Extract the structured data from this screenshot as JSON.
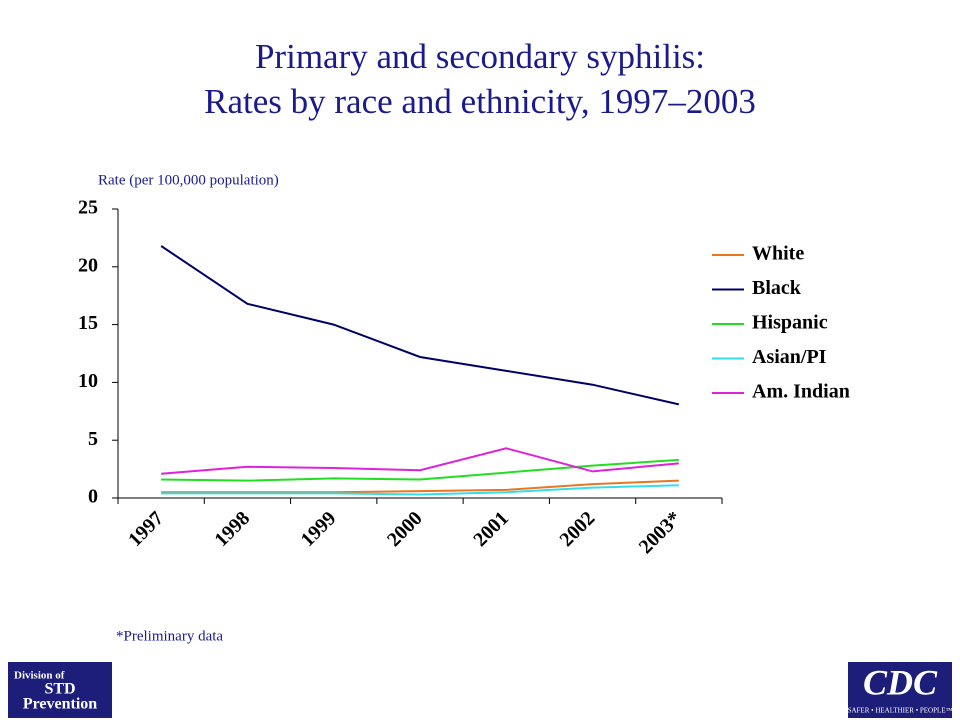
{
  "chart_data": {
    "type": "line",
    "title": "Primary and secondary syphilis:",
    "subtitle": "Rates by race and ethnicity, 1997–2003",
    "y_label": "Rate (per 100,000 population)",
    "note": "*Preliminary data",
    "categories": [
      "1997",
      "1998",
      "1999",
      "2000",
      "2001",
      "2002",
      "2003*"
    ],
    "ylim": [
      0,
      25
    ],
    "yticks": [
      0,
      5,
      10,
      15,
      20,
      25
    ],
    "grid": false,
    "legend": "right",
    "series": [
      {
        "name": "White",
        "color": "#e87722",
        "values": [
          0.5,
          0.5,
          0.5,
          0.6,
          0.7,
          1.2,
          1.5
        ]
      },
      {
        "name": "Black",
        "color": "#000066",
        "values": [
          21.8,
          16.8,
          15.0,
          12.2,
          11.0,
          9.8,
          8.1
        ]
      },
      {
        "name": "Hispanic",
        "color": "#22dd22",
        "values": [
          1.6,
          1.5,
          1.7,
          1.6,
          2.2,
          2.8,
          3.3
        ]
      },
      {
        "name": "Asian/PI",
        "color": "#33ddee",
        "values": [
          0.4,
          0.4,
          0.4,
          0.3,
          0.5,
          0.9,
          1.1
        ]
      },
      {
        "name": "Am. Indian",
        "color": "#dd22dd",
        "values": [
          2.1,
          2.7,
          2.6,
          2.4,
          4.3,
          2.3,
          3.0
        ]
      }
    ]
  },
  "logos": {
    "left": [
      "Division of",
      "STD",
      "Prevention"
    ],
    "right": [
      "CDC",
      "SAFER • HEALTHIER • PEOPLE™"
    ]
  }
}
